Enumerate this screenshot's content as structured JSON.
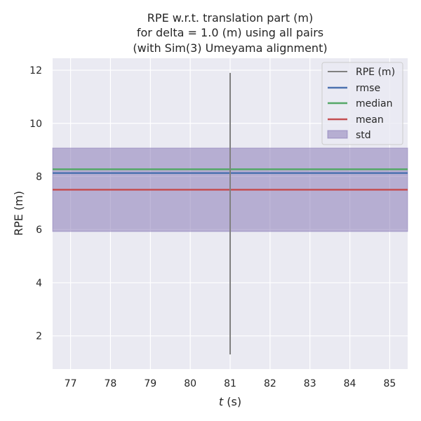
{
  "chart_data": {
    "type": "line",
    "title_lines": [
      "RPE w.r.t. translation part (m)",
      "for delta = 1.0 (m) using all pairs",
      "(with Sim(3) Umeyama alignment)"
    ],
    "xlabel_italic": "t",
    "xlabel_rest": " (s)",
    "ylabel": "RPE (m)",
    "xlim": [
      76.55,
      85.45
    ],
    "ylim": [
      0.75,
      12.45
    ],
    "xticks": [
      77,
      78,
      79,
      80,
      81,
      82,
      83,
      84,
      85
    ],
    "yticks": [
      2,
      4,
      6,
      8,
      10,
      12
    ],
    "grid": true,
    "legend_position": "top-right",
    "series": [
      {
        "name": "RPE (m)",
        "color": "#808080",
        "x": [
          81.0,
          81.0,
          81.0,
          81.0,
          81.0
        ],
        "y": [
          1.3,
          6.0,
          10.8,
          11.0,
          11.9
        ]
      }
    ],
    "stats": {
      "rmse": {
        "name": "rmse",
        "value": 8.13,
        "color": "#4c72b0"
      },
      "median": {
        "name": "median",
        "value": 8.27,
        "color": "#55a868"
      },
      "mean": {
        "name": "mean",
        "value": 7.5,
        "color": "#c44e52"
      },
      "std": {
        "name": "std",
        "low": 5.93,
        "high": 9.07,
        "color": "#8172b2"
      }
    }
  }
}
